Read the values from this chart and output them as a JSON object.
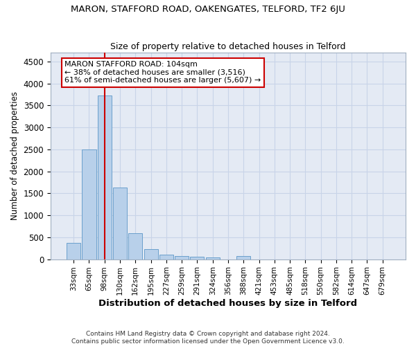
{
  "title": "MARON, STAFFORD ROAD, OAKENGATES, TELFORD, TF2 6JU",
  "subtitle": "Size of property relative to detached houses in Telford",
  "xlabel": "Distribution of detached houses by size in Telford",
  "ylabel": "Number of detached properties",
  "footer_line1": "Contains HM Land Registry data © Crown copyright and database right 2024.",
  "footer_line2": "Contains public sector information licensed under the Open Government Licence v3.0.",
  "categories": [
    "33sqm",
    "65sqm",
    "98sqm",
    "130sqm",
    "162sqm",
    "195sqm",
    "227sqm",
    "259sqm",
    "291sqm",
    "324sqm",
    "356sqm",
    "388sqm",
    "421sqm",
    "453sqm",
    "485sqm",
    "518sqm",
    "550sqm",
    "582sqm",
    "614sqm",
    "647sqm",
    "679sqm"
  ],
  "values": [
    370,
    2500,
    3720,
    1630,
    590,
    230,
    110,
    70,
    55,
    40,
    0,
    70,
    0,
    0,
    0,
    0,
    0,
    0,
    0,
    0,
    0
  ],
  "bar_color": "#b8d0ea",
  "bar_edge_color": "#6aa0cc",
  "grid_color": "#c8d4e8",
  "background_color": "#e4eaf4",
  "vline_x": 2.0,
  "vline_color": "#cc0000",
  "annotation_text": "MARON STAFFORD ROAD: 104sqm\n← 38% of detached houses are smaller (3,516)\n61% of semi-detached houses are larger (5,607) →",
  "annotation_box_color": "#ffffff",
  "annotation_box_edge": "#cc0000",
  "ylim": [
    0,
    4700
  ],
  "yticks": [
    0,
    500,
    1000,
    1500,
    2000,
    2500,
    3000,
    3500,
    4000,
    4500
  ]
}
